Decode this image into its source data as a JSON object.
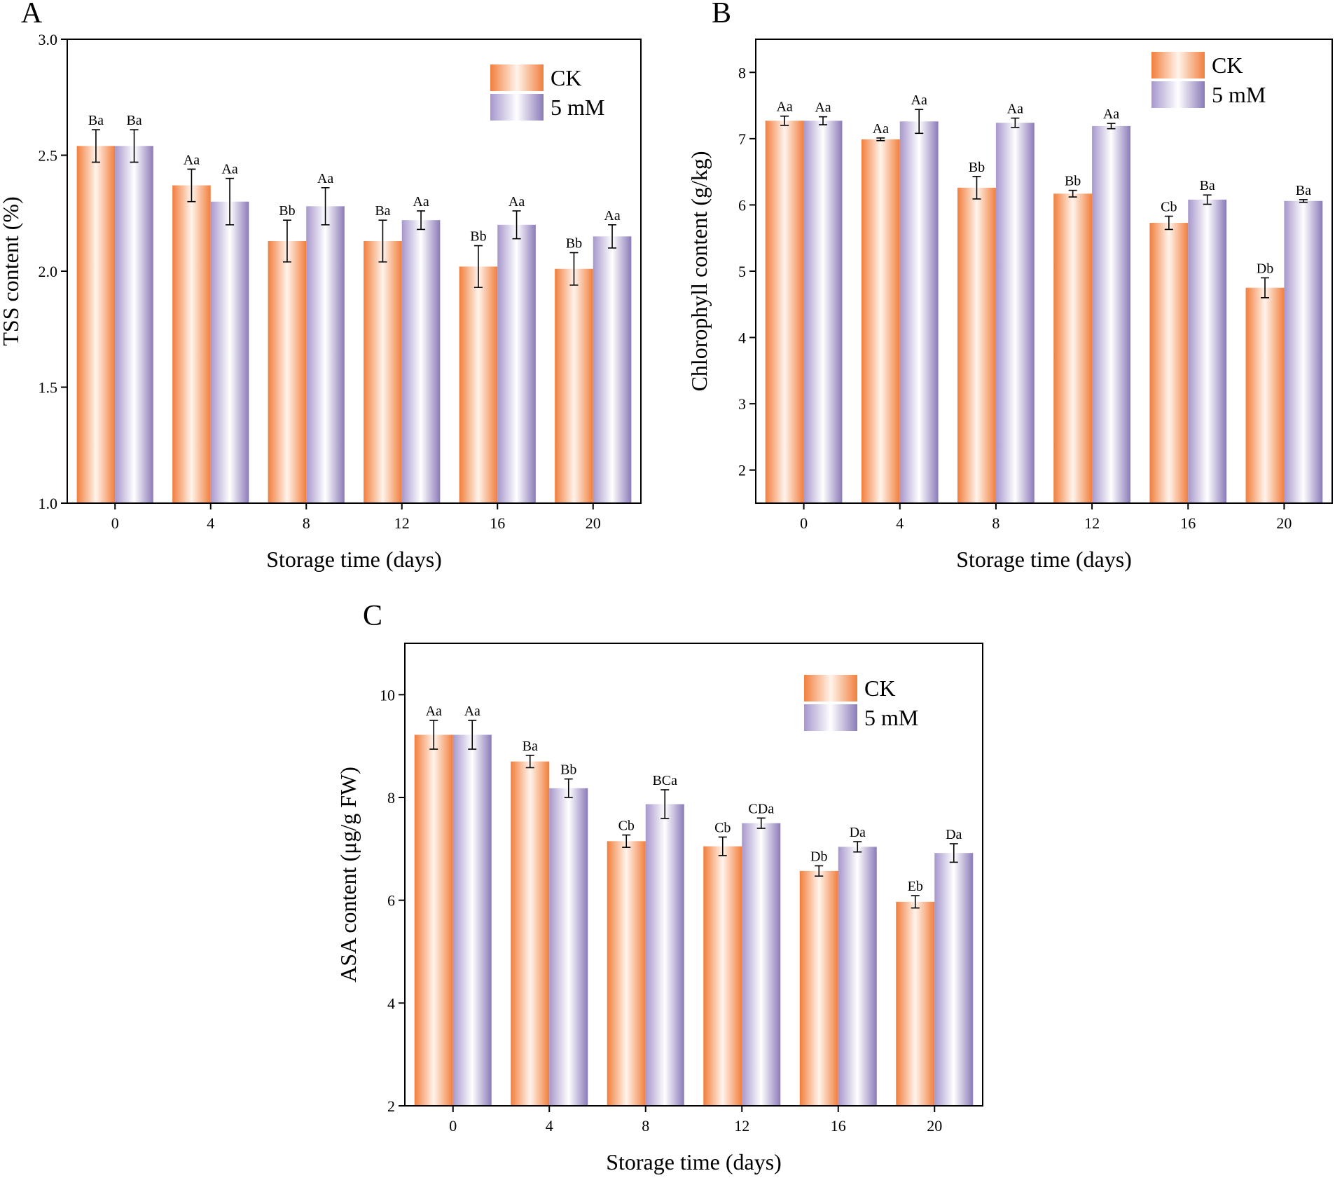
{
  "figure": {
    "colors": {
      "ck": "#f5894a",
      "mm": "#9a8bc3",
      "axis": "#000000"
    }
  },
  "chart_data": [
    {
      "panel": "A",
      "type": "bar",
      "categories": [
        "0",
        "4",
        "8",
        "12",
        "16",
        "20"
      ],
      "series": [
        {
          "name": "CK",
          "values": [
            2.54,
            2.37,
            2.13,
            2.13,
            2.02,
            2.01
          ],
          "errors": [
            0.07,
            0.07,
            0.09,
            0.09,
            0.09,
            0.07
          ],
          "labels": [
            "Ba",
            "Aa",
            "Bb",
            "Ba",
            "Bb",
            "Bb"
          ]
        },
        {
          "name": "5 mM",
          "values": [
            2.54,
            2.3,
            2.28,
            2.22,
            2.2,
            2.15
          ],
          "errors": [
            0.07,
            0.1,
            0.08,
            0.04,
            0.06,
            0.05
          ],
          "labels": [
            "Ba",
            "Aa",
            "Aa",
            "Aa",
            "Aa",
            "Aa"
          ]
        }
      ],
      "xlabel": "Storage time (days)",
      "ylabel": "TSS content (%)",
      "ylim": [
        1.0,
        3.0
      ],
      "yticks": [
        1.0,
        1.5,
        2.0,
        2.5,
        3.0
      ],
      "ytick_labels": [
        "1.0",
        "1.5",
        "2.0",
        "2.5",
        "3.0"
      ],
      "legend": "top-right"
    },
    {
      "panel": "B",
      "type": "bar",
      "categories": [
        "0",
        "4",
        "8",
        "12",
        "16",
        "20"
      ],
      "series": [
        {
          "name": "CK",
          "values": [
            7.27,
            6.99,
            6.26,
            6.17,
            5.73,
            4.75
          ],
          "errors": [
            0.07,
            0.02,
            0.17,
            0.05,
            0.1,
            0.15
          ],
          "labels": [
            "Aa",
            "Aa",
            "Bb",
            "Bb",
            "Cb",
            "Db"
          ]
        },
        {
          "name": "5 mM",
          "values": [
            7.27,
            7.26,
            7.24,
            7.19,
            6.08,
            6.06
          ],
          "errors": [
            0.06,
            0.18,
            0.07,
            0.04,
            0.07,
            0.02
          ],
          "labels": [
            "Aa",
            "Aa",
            "Aa",
            "Aa",
            "Ba",
            "Ba"
          ]
        }
      ],
      "xlabel": "Storage time (days)",
      "ylabel": "Chlorophyll content (g/kg)",
      "ylim": [
        1.5,
        8.5
      ],
      "yticks": [
        2,
        3,
        4,
        5,
        6,
        7,
        8
      ],
      "ytick_labels": [
        "2",
        "3",
        "4",
        "5",
        "6",
        "7",
        "8"
      ],
      "legend": "top-right"
    },
    {
      "panel": "C",
      "type": "bar",
      "categories": [
        "0",
        "4",
        "8",
        "12",
        "16",
        "20"
      ],
      "series": [
        {
          "name": "CK",
          "values": [
            9.22,
            8.7,
            7.15,
            7.05,
            6.57,
            5.97
          ],
          "errors": [
            0.28,
            0.12,
            0.12,
            0.18,
            0.1,
            0.12
          ],
          "labels": [
            "Aa",
            "Ba",
            "Cb",
            "Cb",
            "Db",
            "Eb"
          ]
        },
        {
          "name": "5 mM",
          "values": [
            9.22,
            8.18,
            7.87,
            7.5,
            7.04,
            6.92
          ],
          "errors": [
            0.28,
            0.18,
            0.28,
            0.1,
            0.1,
            0.18
          ],
          "labels": [
            "Aa",
            "Bb",
            "BCa",
            "CDa",
            "Da",
            "Da"
          ]
        }
      ],
      "xlabel": "Storage time (days)",
      "ylabel": "ASA content (μg/g FW)",
      "ylim": [
        2,
        11
      ],
      "yticks": [
        2,
        4,
        6,
        8,
        10
      ],
      "ytick_labels": [
        "2",
        "4",
        "6",
        "8",
        "10"
      ],
      "legend": "top-right"
    }
  ]
}
